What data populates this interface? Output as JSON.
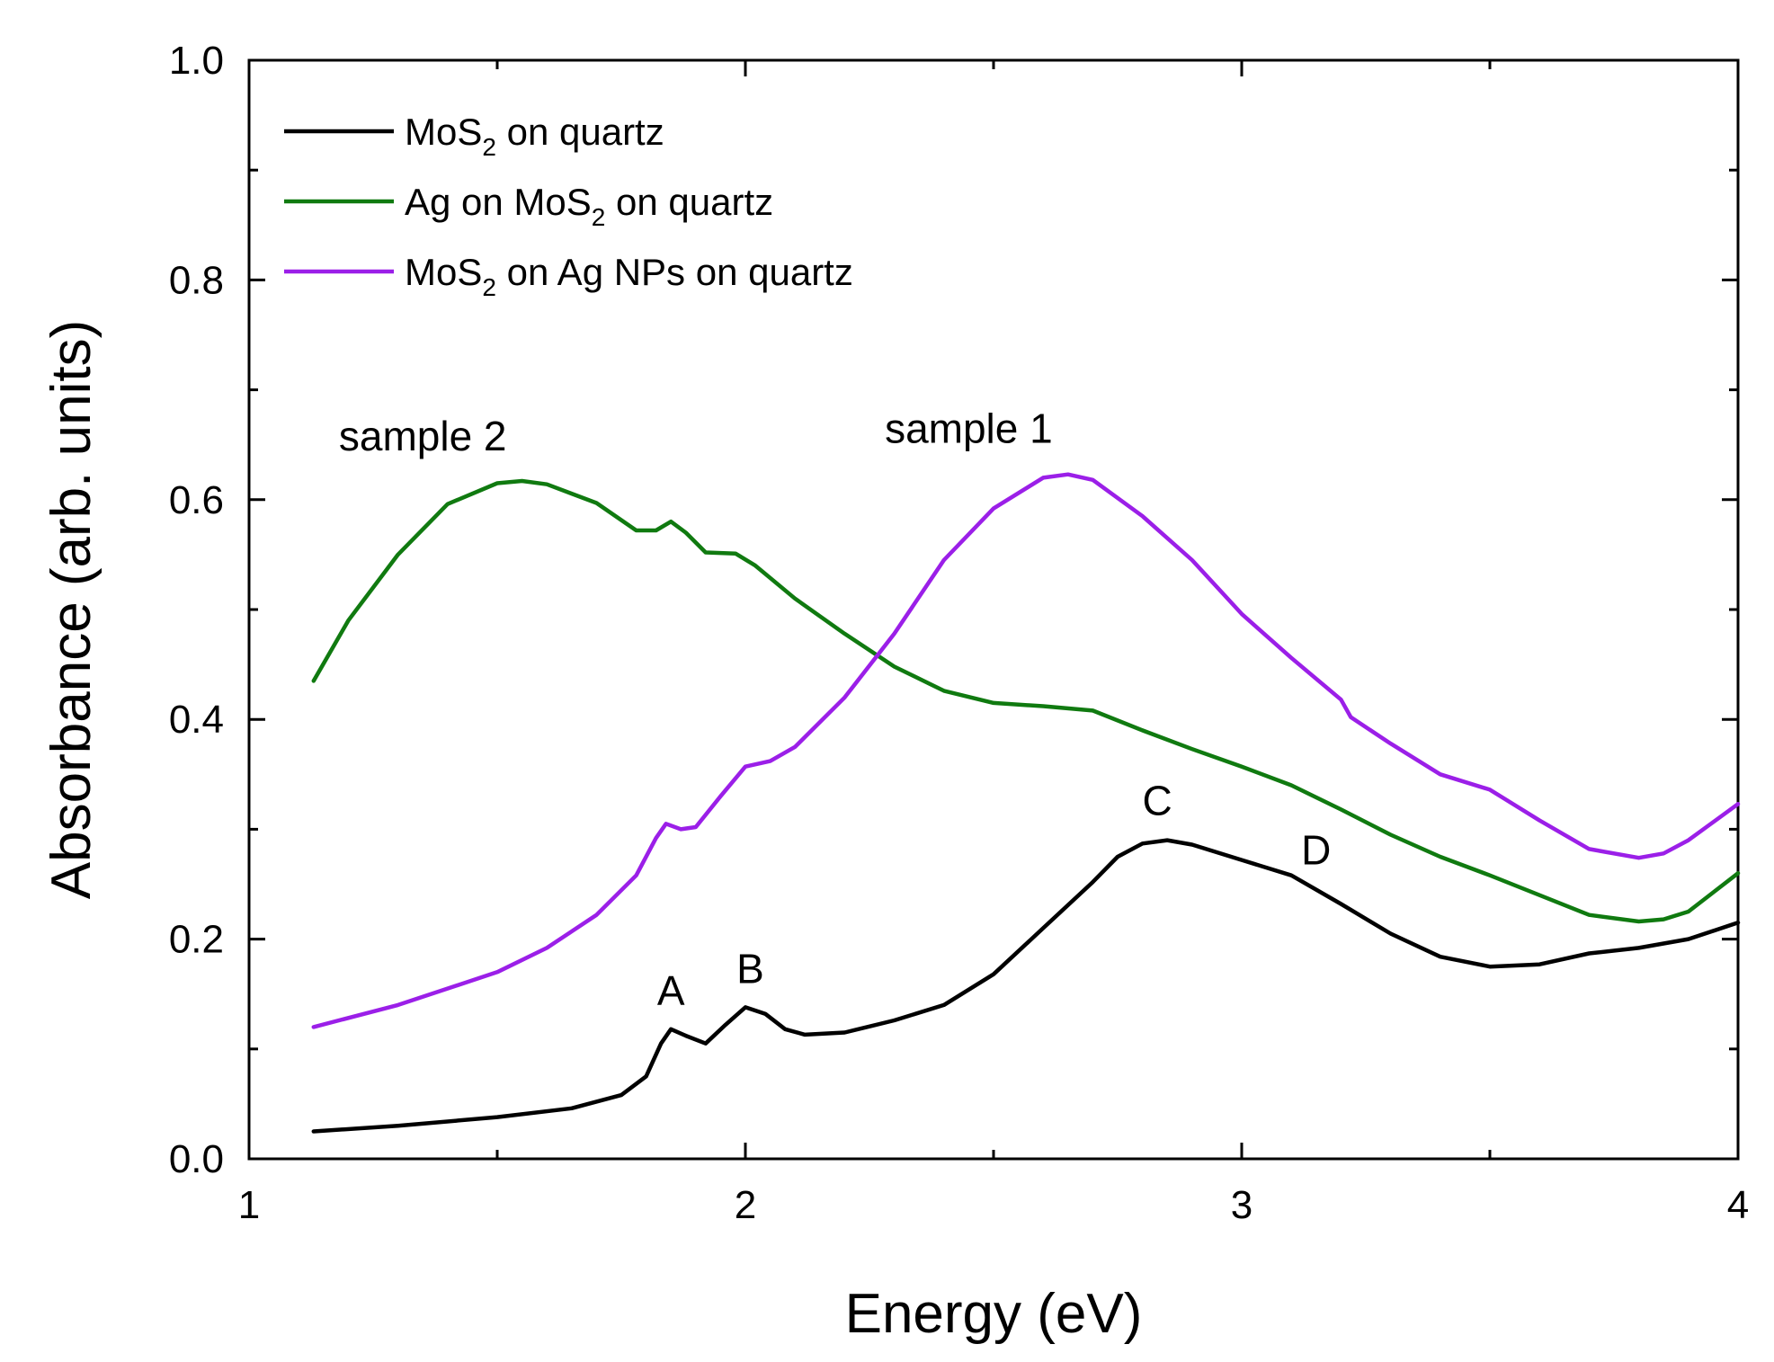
{
  "chart_data": {
    "type": "line",
    "xlabel": "Energy (eV)",
    "ylabel": "Absorbance (arb. units)",
    "xlim": [
      1,
      4
    ],
    "ylim": [
      0.0,
      1.0
    ],
    "x_ticks": [
      1,
      2,
      3,
      4
    ],
    "x_tick_labels": [
      "1",
      "2",
      "3",
      "4"
    ],
    "y_ticks": [
      0.0,
      0.2,
      0.4,
      0.6,
      0.8,
      1.0
    ],
    "y_tick_labels": [
      "0.0",
      "0.2",
      "0.4",
      "0.6",
      "0.8",
      "1.0"
    ],
    "grid": false,
    "legend_position": "top-left",
    "series": [
      {
        "name_parts": [
          "MoS",
          "2",
          " on quartz"
        ],
        "color": "#000000",
        "points": [
          [
            1.13,
            0.025
          ],
          [
            1.3,
            0.03
          ],
          [
            1.5,
            0.038
          ],
          [
            1.65,
            0.046
          ],
          [
            1.75,
            0.058
          ],
          [
            1.8,
            0.075
          ],
          [
            1.83,
            0.105
          ],
          [
            1.85,
            0.118
          ],
          [
            1.88,
            0.112
          ],
          [
            1.92,
            0.105
          ],
          [
            1.96,
            0.122
          ],
          [
            2.0,
            0.138
          ],
          [
            2.04,
            0.132
          ],
          [
            2.08,
            0.118
          ],
          [
            2.12,
            0.113
          ],
          [
            2.2,
            0.115
          ],
          [
            2.3,
            0.126
          ],
          [
            2.4,
            0.14
          ],
          [
            2.5,
            0.168
          ],
          [
            2.6,
            0.21
          ],
          [
            2.7,
            0.252
          ],
          [
            2.75,
            0.275
          ],
          [
            2.8,
            0.287
          ],
          [
            2.85,
            0.29
          ],
          [
            2.9,
            0.286
          ],
          [
            3.0,
            0.272
          ],
          [
            3.1,
            0.258
          ],
          [
            3.2,
            0.232
          ],
          [
            3.3,
            0.205
          ],
          [
            3.4,
            0.184
          ],
          [
            3.5,
            0.175
          ],
          [
            3.6,
            0.177
          ],
          [
            3.7,
            0.187
          ],
          [
            3.8,
            0.192
          ],
          [
            3.9,
            0.2
          ],
          [
            4.0,
            0.215
          ]
        ]
      },
      {
        "name_parts": [
          "Ag on MoS",
          "2",
          " on quartz"
        ],
        "color": "#107A10",
        "points": [
          [
            1.13,
            0.435
          ],
          [
            1.2,
            0.49
          ],
          [
            1.3,
            0.55
          ],
          [
            1.4,
            0.596
          ],
          [
            1.5,
            0.615
          ],
          [
            1.55,
            0.617
          ],
          [
            1.6,
            0.614
          ],
          [
            1.7,
            0.597
          ],
          [
            1.78,
            0.572
          ],
          [
            1.82,
            0.572
          ],
          [
            1.85,
            0.58
          ],
          [
            1.88,
            0.57
          ],
          [
            1.92,
            0.552
          ],
          [
            1.98,
            0.551
          ],
          [
            2.02,
            0.54
          ],
          [
            2.1,
            0.51
          ],
          [
            2.2,
            0.478
          ],
          [
            2.3,
            0.448
          ],
          [
            2.4,
            0.426
          ],
          [
            2.5,
            0.415
          ],
          [
            2.6,
            0.412
          ],
          [
            2.7,
            0.408
          ],
          [
            2.8,
            0.39
          ],
          [
            2.9,
            0.373
          ],
          [
            3.0,
            0.357
          ],
          [
            3.1,
            0.34
          ],
          [
            3.2,
            0.318
          ],
          [
            3.3,
            0.295
          ],
          [
            3.4,
            0.275
          ],
          [
            3.5,
            0.258
          ],
          [
            3.6,
            0.24
          ],
          [
            3.7,
            0.222
          ],
          [
            3.8,
            0.216
          ],
          [
            3.85,
            0.218
          ],
          [
            3.9,
            0.225
          ],
          [
            4.0,
            0.26
          ]
        ]
      },
      {
        "name_parts": [
          "MoS",
          "2",
          " on Ag NPs on quartz"
        ],
        "color": "#9B1FE8",
        "points": [
          [
            1.13,
            0.12
          ],
          [
            1.3,
            0.14
          ],
          [
            1.5,
            0.17
          ],
          [
            1.6,
            0.192
          ],
          [
            1.7,
            0.222
          ],
          [
            1.78,
            0.258
          ],
          [
            1.82,
            0.292
          ],
          [
            1.84,
            0.305
          ],
          [
            1.87,
            0.3
          ],
          [
            1.9,
            0.302
          ],
          [
            1.95,
            0.33
          ],
          [
            2.0,
            0.357
          ],
          [
            2.05,
            0.362
          ],
          [
            2.1,
            0.375
          ],
          [
            2.2,
            0.42
          ],
          [
            2.3,
            0.478
          ],
          [
            2.4,
            0.545
          ],
          [
            2.5,
            0.592
          ],
          [
            2.6,
            0.62
          ],
          [
            2.65,
            0.623
          ],
          [
            2.7,
            0.618
          ],
          [
            2.8,
            0.585
          ],
          [
            2.9,
            0.545
          ],
          [
            3.0,
            0.496
          ],
          [
            3.1,
            0.456
          ],
          [
            3.2,
            0.418
          ],
          [
            3.22,
            0.402
          ],
          [
            3.3,
            0.378
          ],
          [
            3.4,
            0.35
          ],
          [
            3.5,
            0.336
          ],
          [
            3.6,
            0.308
          ],
          [
            3.7,
            0.282
          ],
          [
            3.8,
            0.274
          ],
          [
            3.85,
            0.278
          ],
          [
            3.9,
            0.29
          ],
          [
            4.0,
            0.323
          ]
        ]
      }
    ],
    "annotations": [
      {
        "text": "sample 2",
        "x": 1.35,
        "y": 0.645
      },
      {
        "text": "sample 1",
        "x": 2.45,
        "y": 0.652
      },
      {
        "text": "A",
        "x": 1.85,
        "y": 0.14
      },
      {
        "text": "B",
        "x": 2.01,
        "y": 0.16
      },
      {
        "text": "C",
        "x": 2.83,
        "y": 0.313
      },
      {
        "text": "D",
        "x": 3.15,
        "y": 0.268
      }
    ]
  }
}
